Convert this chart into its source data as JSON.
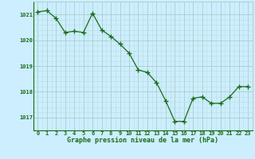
{
  "x": [
    0,
    1,
    2,
    3,
    4,
    5,
    6,
    7,
    8,
    9,
    10,
    11,
    12,
    13,
    14,
    15,
    16,
    17,
    18,
    19,
    20,
    21,
    22,
    23
  ],
  "y": [
    1021.1,
    1021.15,
    1020.85,
    1020.3,
    1020.35,
    1020.3,
    1021.05,
    1020.4,
    1020.15,
    1019.85,
    1019.5,
    1018.85,
    1018.75,
    1018.35,
    1017.65,
    1016.85,
    1016.85,
    1017.75,
    1017.8,
    1017.55,
    1017.55,
    1017.8,
    1018.2,
    1018.2
  ],
  "line_color": "#1a6b1a",
  "marker_color": "#1a6b1a",
  "bg_color": "#cceeff",
  "grid_major_color": "#aacccc",
  "grid_minor_color": "#bbdddd",
  "xlabel": "Graphe pression niveau de la mer (hPa)",
  "xlabel_color": "#1a6b1a",
  "tick_color": "#1a6b1a",
  "ylim": [
    1016.5,
    1021.5
  ],
  "yticks": [
    1017,
    1018,
    1019,
    1020,
    1021
  ],
  "xticks": [
    0,
    1,
    2,
    3,
    4,
    5,
    6,
    7,
    8,
    9,
    10,
    11,
    12,
    13,
    14,
    15,
    16,
    17,
    18,
    19,
    20,
    21,
    22,
    23
  ],
  "xtick_labels": [
    "0",
    "1",
    "2",
    "3",
    "4",
    "5",
    "6",
    "7",
    "8",
    "9",
    "10",
    "11",
    "12",
    "13",
    "14",
    "15",
    "16",
    "17",
    "18",
    "19",
    "20",
    "21",
    "22",
    "23"
  ]
}
